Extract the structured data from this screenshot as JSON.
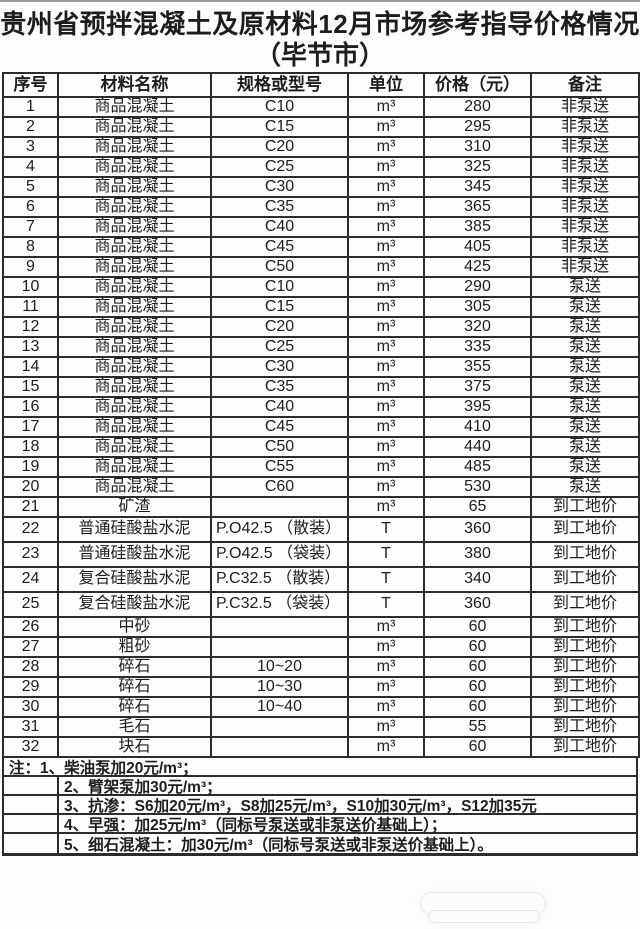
{
  "title": {
    "line1": "贵州省预拌混凝土及原材料12月市场参考指导价格情况",
    "line2": "（毕节市）"
  },
  "table": {
    "headers": [
      "序号",
      "材料名称",
      "规格或型号",
      "单位",
      "价格（元）",
      "备注"
    ],
    "rows": [
      {
        "no": "1",
        "material": "商品混凝土",
        "spec": "C10",
        "unit": "m³",
        "price": "280",
        "note": "非泵送"
      },
      {
        "no": "2",
        "material": "商品混凝土",
        "spec": "C15",
        "unit": "m³",
        "price": "295",
        "note": "非泵送"
      },
      {
        "no": "3",
        "material": "商品混凝土",
        "spec": "C20",
        "unit": "m³",
        "price": "310",
        "note": "非泵送"
      },
      {
        "no": "4",
        "material": "商品混凝土",
        "spec": "C25",
        "unit": "m³",
        "price": "325",
        "note": "非泵送"
      },
      {
        "no": "5",
        "material": "商品混凝土",
        "spec": "C30",
        "unit": "m³",
        "price": "345",
        "note": "非泵送"
      },
      {
        "no": "6",
        "material": "商品混凝土",
        "spec": "C35",
        "unit": "m³",
        "price": "365",
        "note": "非泵送"
      },
      {
        "no": "7",
        "material": "商品混凝土",
        "spec": "C40",
        "unit": "m³",
        "price": "385",
        "note": "非泵送"
      },
      {
        "no": "8",
        "material": "商品混凝土",
        "spec": "C45",
        "unit": "m³",
        "price": "405",
        "note": "非泵送"
      },
      {
        "no": "9",
        "material": "商品混凝土",
        "spec": "C50",
        "unit": "m³",
        "price": "425",
        "note": "非泵送"
      },
      {
        "no": "10",
        "material": "商品混凝土",
        "spec": "C10",
        "unit": "m³",
        "price": "290",
        "note": "泵送"
      },
      {
        "no": "11",
        "material": "商品混凝土",
        "spec": "C15",
        "unit": "m³",
        "price": "305",
        "note": "泵送"
      },
      {
        "no": "12",
        "material": "商品混凝土",
        "spec": "C20",
        "unit": "m³",
        "price": "320",
        "note": "泵送"
      },
      {
        "no": "13",
        "material": "商品混凝土",
        "spec": "C25",
        "unit": "m³",
        "price": "335",
        "note": "泵送"
      },
      {
        "no": "14",
        "material": "商品混凝土",
        "spec": "C30",
        "unit": "m³",
        "price": "355",
        "note": "泵送"
      },
      {
        "no": "15",
        "material": "商品混凝土",
        "spec": "C35",
        "unit": "m³",
        "price": "375",
        "note": "泵送"
      },
      {
        "no": "16",
        "material": "商品混凝土",
        "spec": "C40",
        "unit": "m³",
        "price": "395",
        "note": "泵送"
      },
      {
        "no": "17",
        "material": "商品混凝土",
        "spec": "C45",
        "unit": "m³",
        "price": "410",
        "note": "泵送"
      },
      {
        "no": "18",
        "material": "商品混凝土",
        "spec": "C50",
        "unit": "m³",
        "price": "440",
        "note": "泵送"
      },
      {
        "no": "19",
        "material": "商品混凝土",
        "spec": "C55",
        "unit": "m³",
        "price": "485",
        "note": "泵送"
      },
      {
        "no": "20",
        "material": "商品混凝土",
        "spec": "C60",
        "unit": "m³",
        "price": "530",
        "note": "泵送"
      },
      {
        "no": "21",
        "material": "矿渣",
        "spec": "",
        "unit": "m³",
        "price": "65",
        "note": "到工地价"
      },
      {
        "no": "22",
        "material": "普通硅酸盐水泥",
        "spec": "P.O42.5 （散装）",
        "unit": "T",
        "price": "360",
        "note": "到工地价"
      },
      {
        "no": "23",
        "material": "普通硅酸盐水泥",
        "spec": "P.O42.5 （袋装）",
        "unit": "T",
        "price": "380",
        "note": "到工地价"
      },
      {
        "no": "24",
        "material": "复合硅酸盐水泥",
        "spec": "P.C32.5 （散装）",
        "unit": "T",
        "price": "340",
        "note": "到工地价"
      },
      {
        "no": "25",
        "material": "复合硅酸盐水泥",
        "spec": "P.C32.5 （袋装）",
        "unit": "T",
        "price": "360",
        "note": "到工地价"
      },
      {
        "no": "26",
        "material": "中砂",
        "spec": "",
        "unit": "m³",
        "price": "60",
        "note": "到工地价"
      },
      {
        "no": "27",
        "material": "粗砂",
        "spec": "",
        "unit": "m³",
        "price": "60",
        "note": "到工地价"
      },
      {
        "no": "28",
        "material": "碎石",
        "spec": "10~20",
        "unit": "m³",
        "price": "60",
        "note": "到工地价"
      },
      {
        "no": "29",
        "material": "碎石",
        "spec": "10~30",
        "unit": "m³",
        "price": "60",
        "note": "到工地价"
      },
      {
        "no": "30",
        "material": "碎石",
        "spec": "10~40",
        "unit": "m³",
        "price": "60",
        "note": "到工地价"
      },
      {
        "no": "31",
        "material": "毛石",
        "spec": "",
        "unit": "m³",
        "price": "55",
        "note": "到工地价"
      },
      {
        "no": "32",
        "material": "块石",
        "spec": "",
        "unit": "m³",
        "price": "60",
        "note": "到工地价"
      }
    ]
  },
  "notes": {
    "rows": [
      {
        "indent": false,
        "text": "注：1、柴油泵加20元/m³；"
      },
      {
        "indent": true,
        "text": "2、臂架泵加30元/m³；"
      },
      {
        "indent": true,
        "text": "3、抗渗：S6加20元/m³，S8加25元/m³，S10加30元/m³，S12加35元"
      },
      {
        "indent": true,
        "text": "4、早强：加25元/m³（同标号泵送或非泵送价基础上）；"
      },
      {
        "indent": true,
        "text": "5、细石混凝土：加30元/m³（同标号泵送或非泵送价基础上）。"
      }
    ]
  },
  "colors": {
    "border": "#2c2c2c",
    "text": "#1d1d1d",
    "background": "#fdfdfd"
  }
}
